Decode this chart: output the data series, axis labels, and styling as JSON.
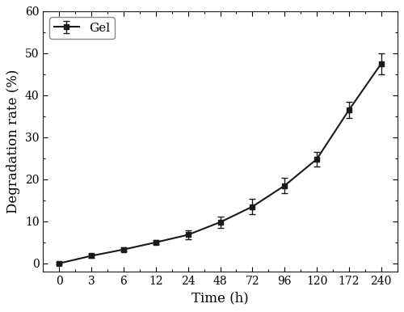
{
  "x_labels": [
    "0",
    "3",
    "6",
    "12",
    "24",
    "48",
    "72",
    "96",
    "120",
    "172",
    "240"
  ],
  "x_positions": [
    0,
    1,
    2,
    3,
    4,
    5,
    6,
    7,
    8,
    9,
    10
  ],
  "y": [
    0.0,
    1.8,
    3.3,
    5.0,
    6.8,
    9.8,
    13.5,
    18.5,
    24.8,
    36.5,
    47.5
  ],
  "yerr": [
    0.3,
    0.5,
    0.5,
    0.5,
    1.0,
    1.3,
    1.8,
    1.8,
    1.8,
    2.0,
    2.5
  ],
  "xlabel": "Time (h)",
  "ylabel": "Degradation rate (%)",
  "legend_label": "Gel",
  "xlim": [
    -0.5,
    10.5
  ],
  "ylim": [
    -2,
    60
  ],
  "yticks": [
    0,
    10,
    20,
    30,
    40,
    50,
    60
  ],
  "line_color": "#1a1a1a",
  "marker": "s",
  "marker_color": "#1a1a1a",
  "marker_size": 5,
  "line_width": 1.5,
  "capsize": 3,
  "elinewidth": 1.0,
  "background_color": "#ffffff",
  "legend_fontsize": 11,
  "axis_label_fontsize": 12,
  "tick_fontsize": 10
}
